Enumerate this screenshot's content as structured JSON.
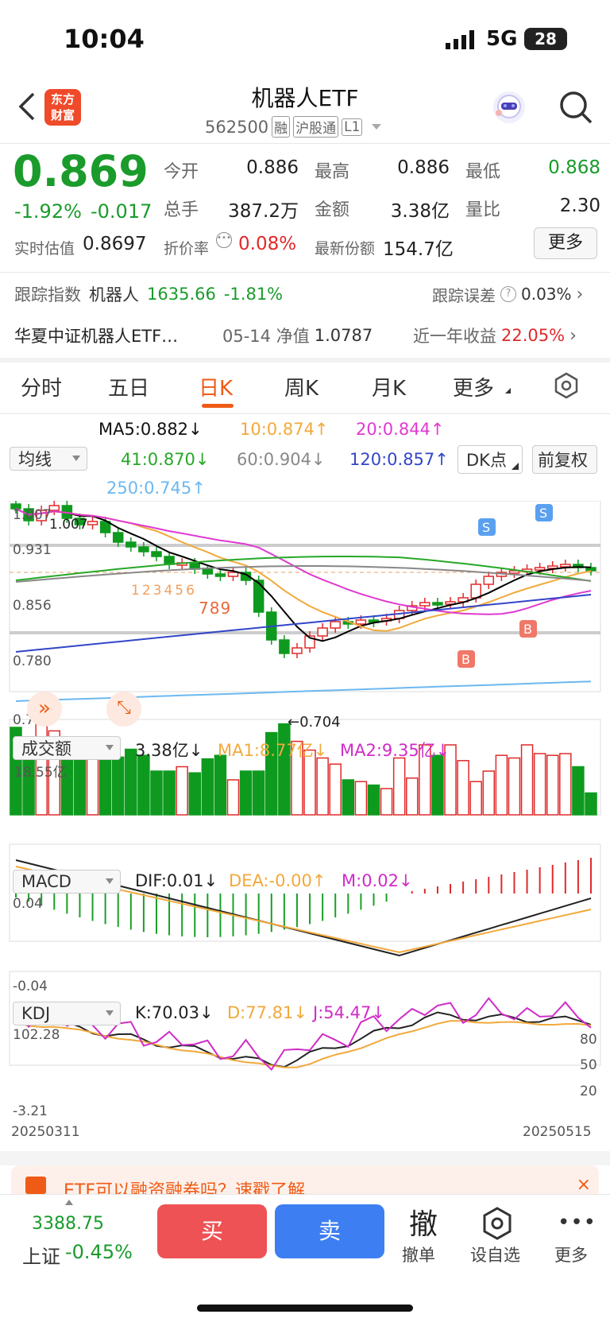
{
  "status_bar": {
    "time": "10:04",
    "network": "5G",
    "battery": "28"
  },
  "header": {
    "logo_line1": "东方",
    "logo_line2": "财富",
    "title": "机器人ETF",
    "code": "562500",
    "tags": [
      "融",
      "沪股通",
      "L1"
    ]
  },
  "quote": {
    "price": "0.869",
    "change_pct": "-1.92%",
    "change": "-0.017",
    "open_label": "今开",
    "open": "0.886",
    "high_label": "最高",
    "high": "0.886",
    "low_label": "最低",
    "low": "0.868",
    "volume_label": "总手",
    "volume": "387.2万",
    "amount_label": "金额",
    "amount": "3.38亿",
    "ratio_label": "量比",
    "ratio": "2.30",
    "iopv_label": "实时估值",
    "iopv": "0.8697",
    "premium_label": "折价率",
    "premium": "0.08%",
    "shares_label": "最新份额",
    "shares": "154.7亿",
    "more_label": "更多"
  },
  "tracking": {
    "label": "跟踪指数",
    "index_name": "机器人",
    "index_value": "1635.66",
    "index_change": "-1.81%",
    "error_label": "跟踪误差",
    "error_value": "0.03%"
  },
  "fund": {
    "name": "华夏中证机器人ETF…",
    "nav_label": "05-14 净值",
    "nav": "1.0787",
    "return_label": "近一年收益",
    "return_value": "22.05%"
  },
  "tabs": [
    "分时",
    "五日",
    "日K",
    "周K",
    "月K",
    "更多"
  ],
  "active_tab": "日K",
  "ma_select": "均线",
  "ma_values": {
    "ma5": "MA5:0.882↓",
    "ma10": "10:0.874↑",
    "ma20": "20:0.844↑",
    "ma41": "41:0.870↓",
    "ma60": "60:0.904↓",
    "ma120": "120:0.857↑",
    "ma250": "250:0.745↑"
  },
  "dk_button": "DK点",
  "adjust_button": "前复权",
  "price_axis": [
    "1.007",
    "0.931",
    "0.856",
    "0.780",
    "0.704"
  ],
  "price_annotations": {
    "high_mark": "1.007",
    "low_mark": "←0.704",
    "counts_a": "123456",
    "counts_b": "789",
    "s_label": "S",
    "b_label": "B"
  },
  "colors": {
    "up": "#e02a2a",
    "down": "#0e9a1f",
    "ma5": "#000000",
    "ma10": "#f2a93b",
    "ma20": "#e03ad0",
    "ma41": "#27a827",
    "ma60": "#888888",
    "ma120": "#3346c8",
    "ma250": "#6cb8f0"
  },
  "volume_panel": {
    "select": "成交额",
    "value": "3.38亿↓",
    "ma1": "MA1:8.77亿↓",
    "ma2": "MA2:9.35亿↓",
    "axis_max": "18.55亿"
  },
  "macd_panel": {
    "select": "MACD",
    "dif": "DIF:0.01↓",
    "dea": "DEA:-0.00↑",
    "m": "M:0.02↓",
    "axis_top": "0.04",
    "axis_bottom": "-0.04"
  },
  "kdj_panel": {
    "select": "KDJ",
    "k": "K:70.03↓",
    "d": "D:77.81↓",
    "j": "J:54.47↓",
    "axis_top": "102.28",
    "axis_bottom": "-3.21",
    "level_80": "80",
    "level_50": "50",
    "level_20": "20"
  },
  "dates": {
    "start": "20250311",
    "end": "20250515"
  },
  "banner": {
    "text": "ETF可以融资融券吗？速戳了解"
  },
  "bottom_bar": {
    "index_value": "3388.75",
    "index_name": "上证",
    "index_change": "-0.45%",
    "buy": "买",
    "sell": "卖",
    "cancel_icon": "撤",
    "cancel_label": "撤单",
    "watch_label": "设自选",
    "more_label": "更多"
  }
}
